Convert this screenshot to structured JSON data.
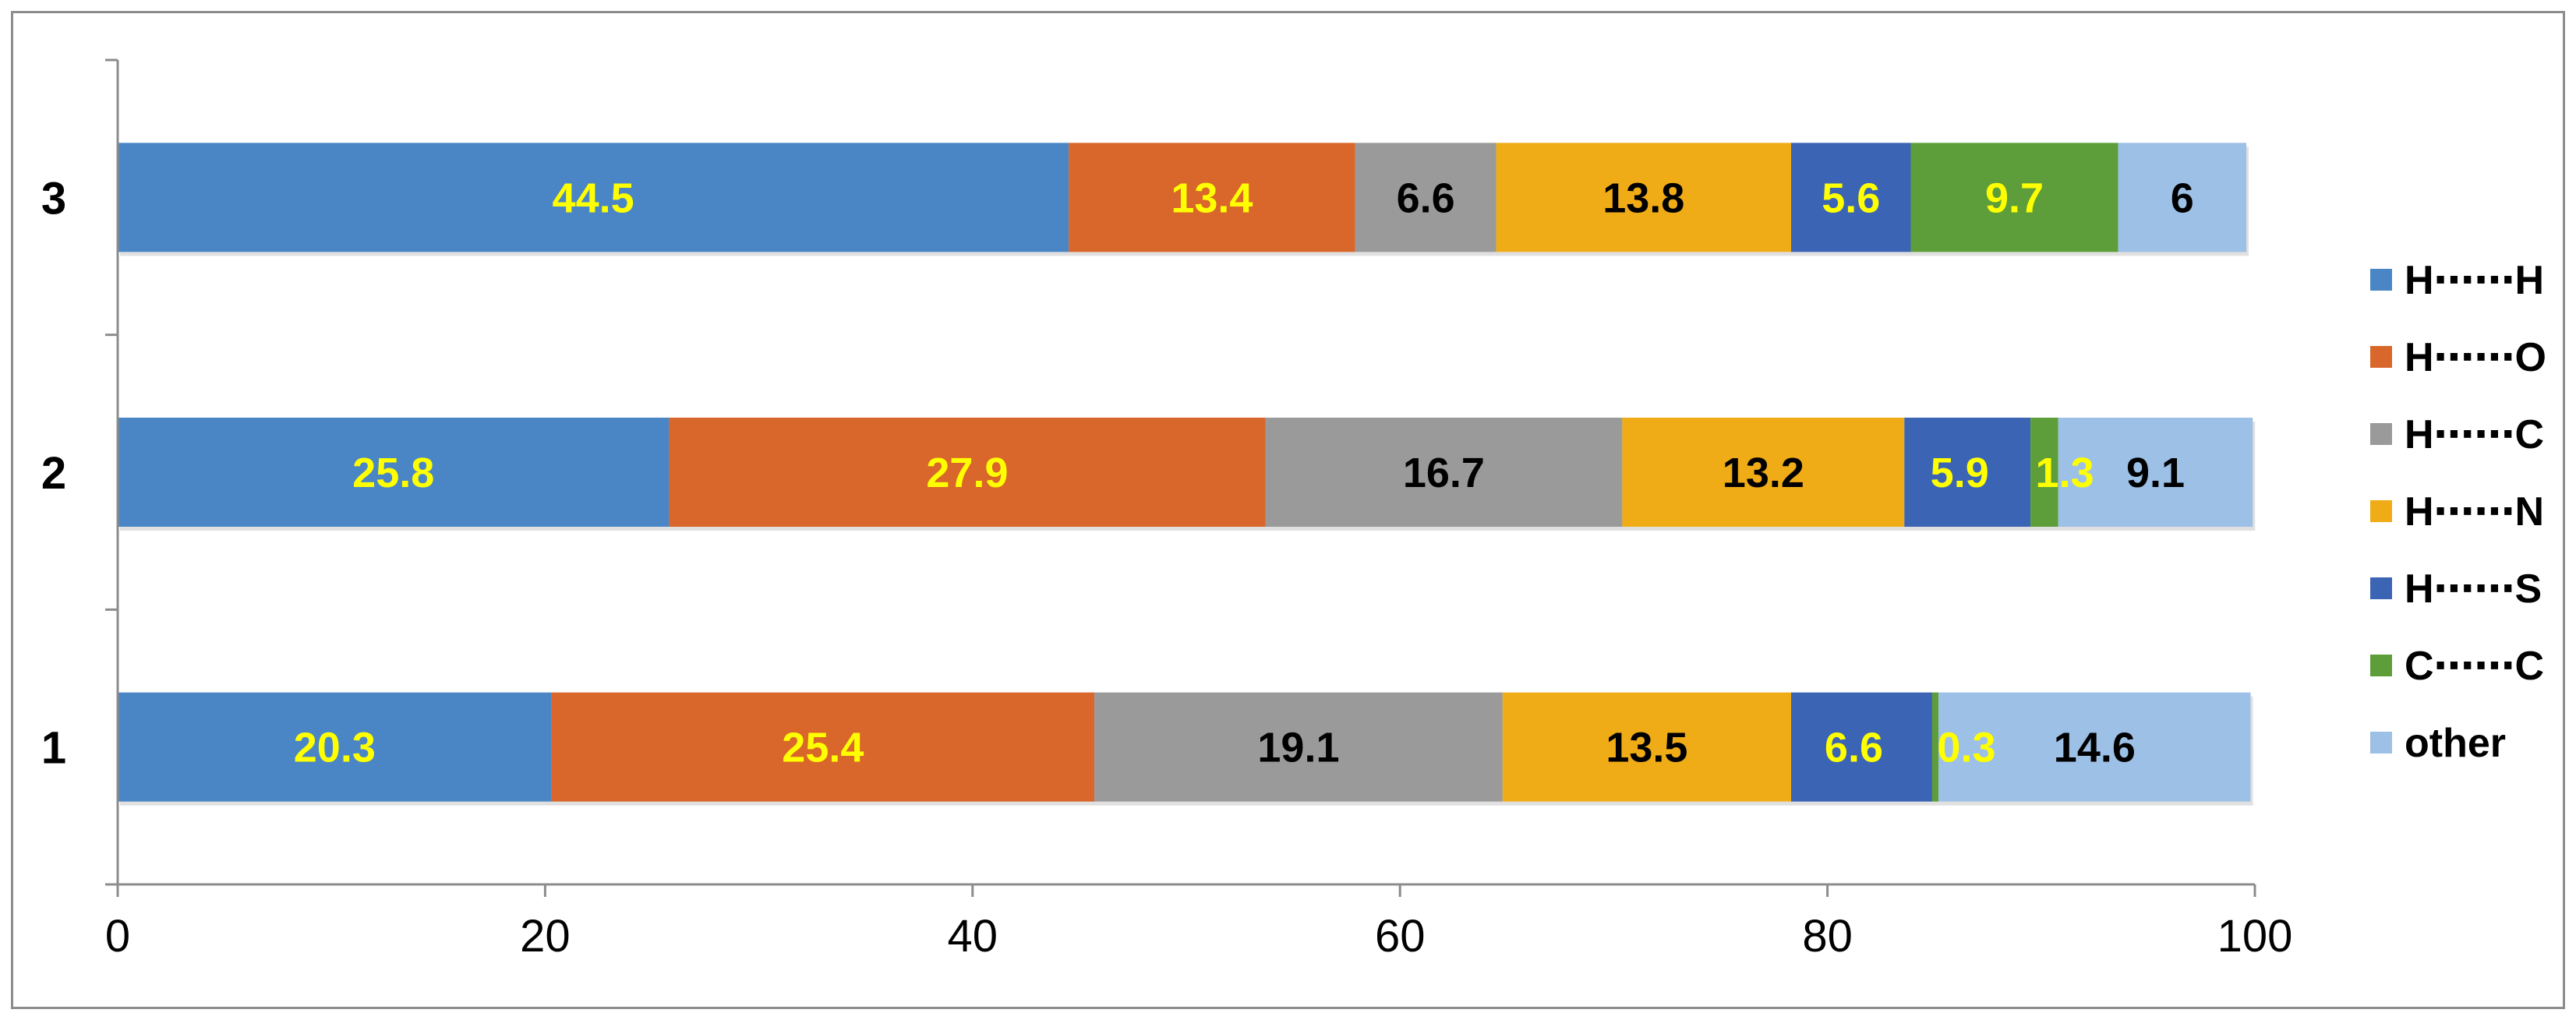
{
  "chart_data": {
    "type": "bar",
    "orientation": "horizontal",
    "stacked": true,
    "categories": [
      "1",
      "2",
      "3"
    ],
    "series": [
      {
        "name": "H⋯⋯H",
        "color": "#4a86c5",
        "values": [
          20.3,
          25.8,
          44.5
        ],
        "label_color": "#ffff00"
      },
      {
        "name": "H⋯⋯O",
        "color": "#d9662a",
        "values": [
          25.4,
          27.9,
          13.4
        ],
        "label_color": "#ffff00"
      },
      {
        "name": "H⋯⋯C",
        "color": "#9a9a9a",
        "values": [
          19.1,
          16.7,
          6.6
        ],
        "label_color": "#000000"
      },
      {
        "name": "H⋯⋯N",
        "color": "#f0ac17",
        "values": [
          13.5,
          13.2,
          13.8
        ],
        "label_color": "#000000"
      },
      {
        "name": "H⋯⋯S",
        "color": "#3b64b5",
        "values": [
          6.6,
          5.9,
          5.6
        ],
        "label_color": "#ffff00"
      },
      {
        "name": "C⋯⋯C",
        "color": "#5e9e3a",
        "values": [
          0.3,
          1.3,
          9.7
        ],
        "label_color": "#ffff00"
      },
      {
        "name": "other",
        "color": "#9dc0e6",
        "values": [
          14.6,
          9.1,
          6
        ],
        "label_color": "#000000"
      }
    ],
    "xlim": [
      0,
      100
    ],
    "xticks": [
      "0",
      "20",
      "40",
      "60",
      "80",
      "100"
    ],
    "grid": false,
    "legend_position": "right",
    "title": "",
    "xlabel": "",
    "ylabel": ""
  }
}
